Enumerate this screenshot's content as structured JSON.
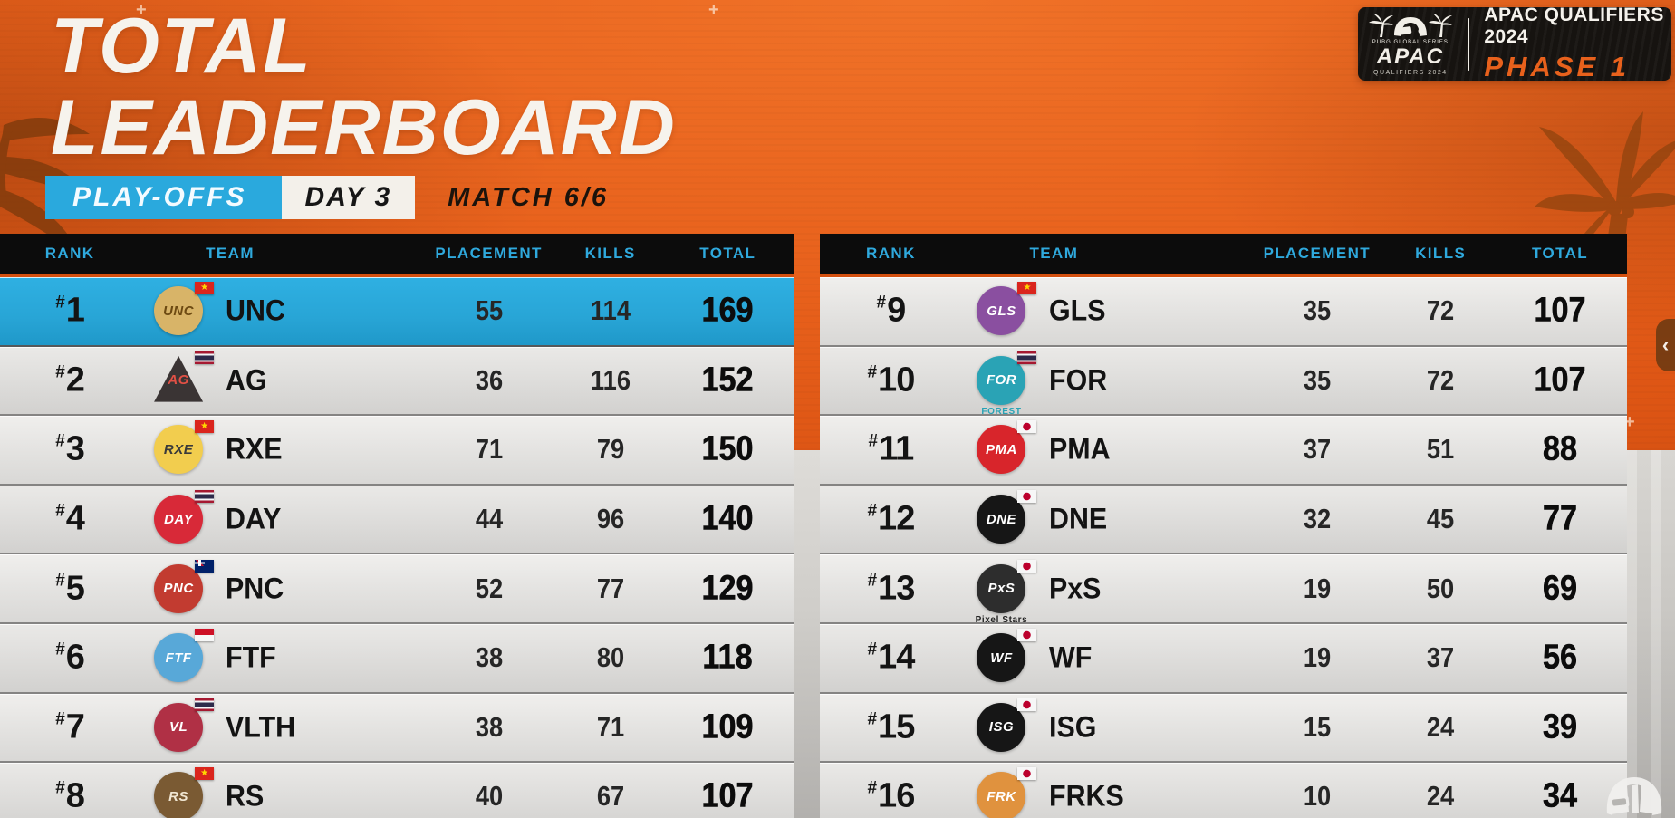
{
  "header": {
    "title_line1": "TOTAL",
    "title_line2": "LEADERBOARD",
    "stage_badge": "PLAY-OFFS",
    "day_badge": "DAY 3",
    "match_label": "MATCH 6/6"
  },
  "event_badge": {
    "logo_top": "PUBG GLOBAL SERIES",
    "logo_main": "APAC",
    "logo_bottom": "QUALIFIERS 2024",
    "line1": "APAC QUALIFIERS 2024",
    "line2": "PHASE 1"
  },
  "columns": [
    "RANK",
    "TEAM",
    "PLACEMENT",
    "KILLS",
    "TOTAL"
  ],
  "table_meta": {
    "rank_prefix": "#"
  },
  "icons": {
    "vn_star": "★",
    "chevron": "‹"
  },
  "colors": {
    "accent_orange": "#e8611c",
    "accent_cyan": "#2aa9dd",
    "header_bar": "#0c0c0c",
    "highlight_row": "#29a8db"
  },
  "tables": {
    "left": [
      {
        "rank": "1",
        "team": "UNC",
        "placement": "55",
        "kills": "114",
        "total": "169",
        "highlighted": true,
        "flag": "vn",
        "logo": {
          "bg": "#d8b468",
          "fg": "#6d4a12",
          "monogram": "UNC"
        }
      },
      {
        "rank": "2",
        "team": "AG",
        "placement": "36",
        "kills": "116",
        "total": "152",
        "flag": "th",
        "logo": {
          "bg": "#3a3434",
          "fg": "#e05045",
          "monogram": "AG",
          "shape": "triangle"
        }
      },
      {
        "rank": "3",
        "team": "RXE",
        "placement": "71",
        "kills": "79",
        "total": "150",
        "flag": "vn",
        "logo": {
          "bg": "#f2cd4e",
          "fg": "#3a3a3a",
          "monogram": "RXE"
        }
      },
      {
        "rank": "4",
        "team": "DAY",
        "placement": "44",
        "kills": "96",
        "total": "140",
        "flag": "th",
        "logo": {
          "bg": "#d82938",
          "fg": "#ffffff",
          "monogram": "DAY"
        }
      },
      {
        "rank": "5",
        "team": "PNC",
        "placement": "52",
        "kills": "77",
        "total": "129",
        "flag": "nz",
        "logo": {
          "bg": "#c23b30",
          "fg": "#ffffff",
          "monogram": "PNC"
        }
      },
      {
        "rank": "6",
        "team": "FTF",
        "placement": "38",
        "kills": "80",
        "total": "118",
        "flag": "id",
        "logo": {
          "bg": "#58a8d8",
          "fg": "#ffffff",
          "monogram": "FTF"
        }
      },
      {
        "rank": "7",
        "team": "VLTH",
        "placement": "38",
        "kills": "71",
        "total": "109",
        "flag": "th",
        "logo": {
          "bg": "#b03045",
          "fg": "#ffffff",
          "monogram": "VL"
        }
      },
      {
        "rank": "8",
        "team": "RS",
        "placement": "40",
        "kills": "67",
        "total": "107",
        "flag": "vn",
        "logo": {
          "bg": "#7a5a33",
          "fg": "#f0e6d2",
          "monogram": "RS"
        }
      }
    ],
    "right": [
      {
        "rank": "9",
        "team": "GLS",
        "placement": "35",
        "kills": "72",
        "total": "107",
        "flag": "vn",
        "logo": {
          "bg": "#8a4fa0",
          "fg": "#ffffff",
          "monogram": "GLS"
        }
      },
      {
        "rank": "10",
        "team": "FOR",
        "placement": "35",
        "kills": "72",
        "total": "107",
        "flag": "th",
        "logo": {
          "bg": "#2aa3b5",
          "fg": "#ffffff",
          "monogram": "FOR"
        },
        "caption": "FOREST",
        "caption_color": "#2aa3b5"
      },
      {
        "rank": "11",
        "team": "PMA",
        "placement": "37",
        "kills": "51",
        "total": "88",
        "flag": "jp",
        "logo": {
          "bg": "#d8252b",
          "fg": "#ffffff",
          "monogram": "PMA"
        }
      },
      {
        "rank": "12",
        "team": "DNE",
        "placement": "32",
        "kills": "45",
        "total": "77",
        "flag": "jp",
        "logo": {
          "bg": "#161616",
          "fg": "#ffffff",
          "monogram": "DNE"
        }
      },
      {
        "rank": "13",
        "team": "PxS",
        "placement": "19",
        "kills": "50",
        "total": "69",
        "flag": "jp",
        "logo": {
          "bg": "#2d2d2d",
          "fg": "#ffffff",
          "monogram": "PxS"
        },
        "caption": "Pixel Stars",
        "caption_color": "#222222"
      },
      {
        "rank": "14",
        "team": "WF",
        "placement": "19",
        "kills": "37",
        "total": "56",
        "flag": "jp",
        "logo": {
          "bg": "#161616",
          "fg": "#ffffff",
          "monogram": "WF"
        }
      },
      {
        "rank": "15",
        "team": "ISG",
        "placement": "15",
        "kills": "24",
        "total": "39",
        "flag": "jp",
        "logo": {
          "bg": "#161616",
          "fg": "#ffffff",
          "monogram": "ISG"
        }
      },
      {
        "rank": "16",
        "team": "FRKS",
        "placement": "10",
        "kills": "24",
        "total": "34",
        "flag": "jp",
        "logo": {
          "bg": "#e0923e",
          "fg": "#ffffff",
          "monogram": "FRK"
        }
      }
    ]
  }
}
